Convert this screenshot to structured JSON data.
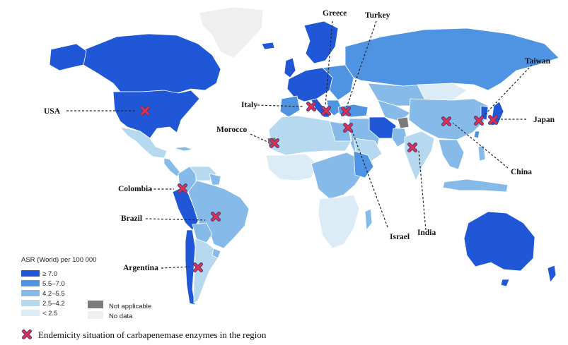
{
  "legend": {
    "title": "ASR (World) per 100 000",
    "classes": [
      {
        "label": "≥ 7.0",
        "color": "#1f57d6"
      },
      {
        "label": "5.5–7.0",
        "color": "#4f93e3"
      },
      {
        "label": "4.2–5.5",
        "color": "#86bbe9"
      },
      {
        "label": "2.5–4.2",
        "color": "#b6d9ef"
      },
      {
        "label": "< 2.5",
        "color": "#dcecf7"
      }
    ],
    "not_applicable": {
      "label": "Not applicable",
      "color": "#7b7b7b"
    },
    "no_data": {
      "label": "No data",
      "color": "#efefef"
    }
  },
  "markers": [
    "USA",
    "Colombia",
    "Brazil",
    "Argentina",
    "Morocco",
    "Italy",
    "Greece",
    "Turkey",
    "Israel",
    "India",
    "China",
    "Taiwan",
    "Japan"
  ],
  "footnote": "Endemicity situation of carbapenemase enzymes in the region",
  "marker_color": "#e0304a"
}
